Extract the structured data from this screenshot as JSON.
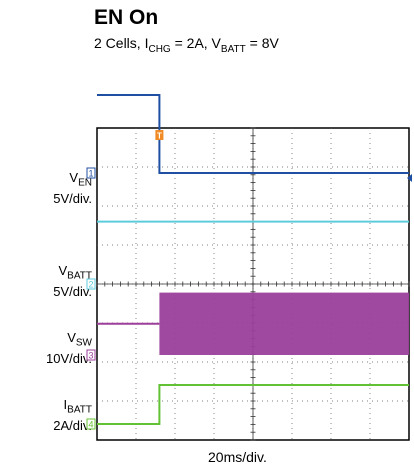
{
  "chart_data": {
    "type": "line",
    "title": "EN On",
    "subtitle": {
      "p1": "2 Cells, I",
      "s1": "CHG",
      "p2": " = 2A, V",
      "s2": "BATT",
      "p3": " = 8V"
    },
    "xlabel": "20ms/div.",
    "x_range_ms": [
      -40,
      160
    ],
    "trigger_marker": "T",
    "channels": [
      {
        "marker": "1",
        "name": "V",
        "sub": "EN",
        "scale": "5V/div.",
        "color": "#1f4fa3",
        "points": [
          [
            -40,
            10
          ],
          [
            0,
            10
          ],
          [
            0,
            0
          ],
          [
            160,
            0
          ]
        ]
      },
      {
        "marker": "2",
        "name": "V",
        "sub": "BATT",
        "scale": "5V/div.",
        "color": "#5ccbdc",
        "points": [
          [
            -40,
            8
          ],
          [
            160,
            8
          ]
        ]
      },
      {
        "marker": "3",
        "name": "V",
        "sub": "SW",
        "scale": "10V/div.",
        "color": "#9b3f9b",
        "points": [
          [
            -40,
            8
          ],
          [
            0,
            8
          ]
        ],
        "switching": {
          "from": 0,
          "to": 160,
          "min": 0,
          "max": 16
        }
      },
      {
        "marker": "4",
        "name": "I",
        "sub": "BATT",
        "scale": "2A/div.",
        "color": "#63c233",
        "points": [
          [
            -40,
            0
          ],
          [
            0,
            0
          ],
          [
            0,
            2
          ],
          [
            160,
            2
          ]
        ]
      }
    ]
  }
}
